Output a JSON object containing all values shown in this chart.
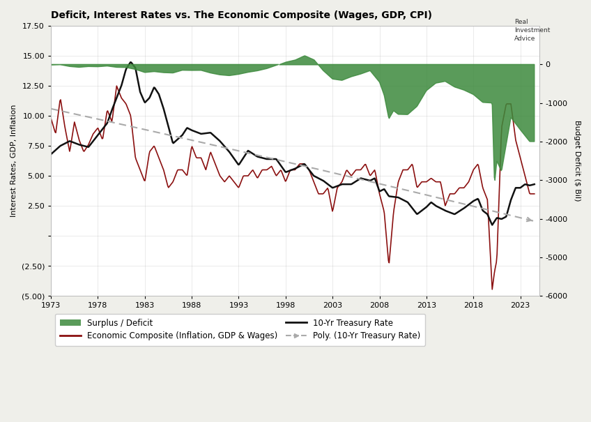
{
  "title": "Deficit, Interest Rates vs. The Economic Composite (Wages, GDP, CPI)",
  "ylabel_left": "Interest Rates, GDP, Inflation",
  "ylabel_right": "Budget Deficit ($ Bil)",
  "ylim_left": [
    -5.0,
    17.5
  ],
  "ylim_right": [
    -6000,
    1000
  ],
  "ytick_vals_left": [
    -5.0,
    -2.5,
    0.0,
    2.5,
    5.0,
    7.5,
    10.0,
    12.5,
    15.0,
    17.5
  ],
  "ytick_labels_left": [
    "(5.00)",
    "(2.50)",
    "",
    "2.50",
    "5.00",
    "7.50",
    "10.00",
    "12.50",
    "15.00",
    "17.50"
  ],
  "ytick_vals_right": [
    -6000,
    -5000,
    -4000,
    -3000,
    -2000,
    -1000,
    0
  ],
  "ytick_labels_right": [
    "-6000",
    "-5000",
    "-4000",
    "-3000",
    "-2000",
    "-1000",
    "0"
  ],
  "xtick_years": [
    1973,
    1978,
    1983,
    1988,
    1993,
    1998,
    2003,
    2008,
    2013,
    2018,
    2023
  ],
  "xlim": [
    1973,
    2025
  ],
  "bg_color": "#efefea",
  "plot_bg_color": "#ffffff",
  "green_fill_color": "#3d8a3d",
  "treasury_color": "#111111",
  "economic_color": "#8b1010",
  "trend_color": "#aaaaaa",
  "treasury_lw": 1.8,
  "economic_lw": 1.2,
  "trend_lw": 1.5
}
